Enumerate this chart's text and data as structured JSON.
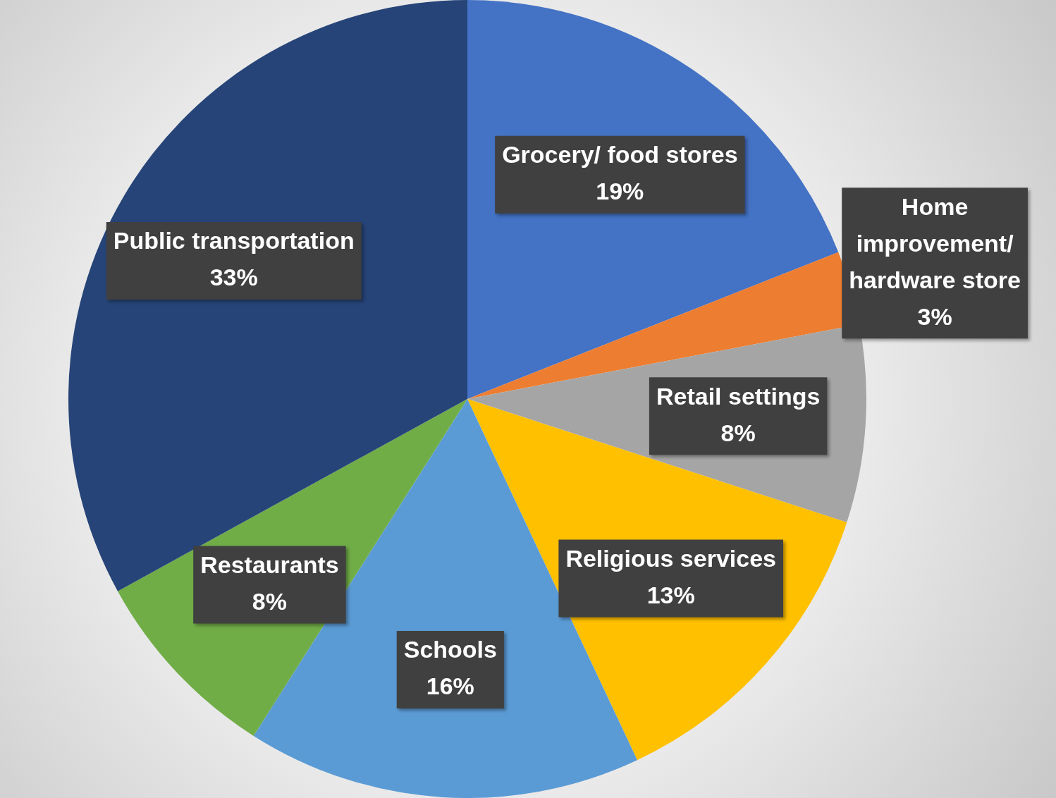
{
  "chart_data": {
    "type": "pie",
    "categories": [
      "Grocery/ food stores",
      "Home improvement/ hardware store",
      "Retail settings",
      "Religious services",
      "Schools",
      "Restaurants",
      "Public transportation"
    ],
    "values": [
      19,
      3,
      8,
      13,
      16,
      8,
      33
    ],
    "value_labels": [
      "19%",
      "3%",
      "8%",
      "13%",
      "16%",
      "8%",
      "33%"
    ],
    "colors": [
      "#4472c4",
      "#ed7d31",
      "#a5a5a5",
      "#ffc000",
      "#5b9bd5",
      "#70ad47",
      "#264478"
    ],
    "legend": false
  }
}
